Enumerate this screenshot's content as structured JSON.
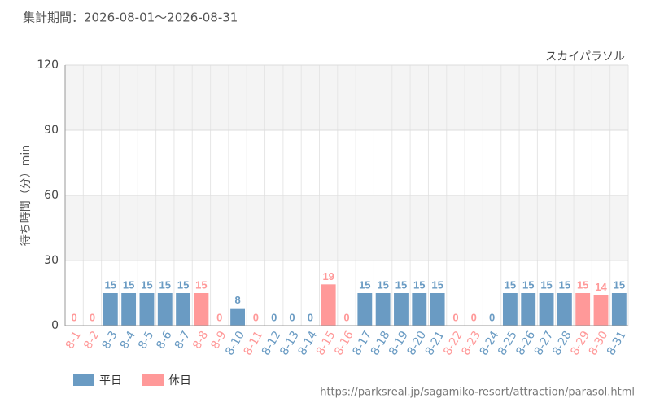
{
  "chart_data": {
    "type": "bar",
    "title": "集計期間：2026-08-01～2026-08-31",
    "subtitle": "スカイパラソル",
    "y_label": "待ち時間（分）min",
    "source": "https://parksreal.jp/sagamiko-resort/attraction/parasol.html",
    "categories": [
      "8-1",
      "8-2",
      "8-3",
      "8-4",
      "8-5",
      "8-6",
      "8-7",
      "8-8",
      "8-9",
      "8-10",
      "8-11",
      "8-12",
      "8-13",
      "8-14",
      "8-15",
      "8-16",
      "8-17",
      "8-18",
      "8-19",
      "8-20",
      "8-21",
      "8-22",
      "8-23",
      "8-24",
      "8-25",
      "8-26",
      "8-27",
      "8-28",
      "8-29",
      "8-30",
      "8-31"
    ],
    "series": [
      {
        "name": "平日",
        "color": "#6a9bc3",
        "values": [
          null,
          null,
          15,
          15,
          15,
          15,
          15,
          null,
          null,
          8,
          null,
          0,
          0,
          0,
          null,
          null,
          15,
          15,
          15,
          15,
          15,
          null,
          null,
          0,
          15,
          15,
          15,
          15,
          null,
          null,
          15
        ]
      },
      {
        "name": "休日",
        "color": "#ff9999",
        "values": [
          0,
          0,
          null,
          null,
          null,
          null,
          null,
          15,
          0,
          null,
          0,
          null,
          null,
          null,
          19,
          0,
          null,
          null,
          null,
          null,
          null,
          0,
          0,
          null,
          null,
          null,
          null,
          null,
          15,
          14,
          null
        ]
      }
    ],
    "ylim": [
      0,
      120
    ],
    "yticks": [
      0,
      30,
      60,
      90,
      120
    ],
    "grid": true
  }
}
